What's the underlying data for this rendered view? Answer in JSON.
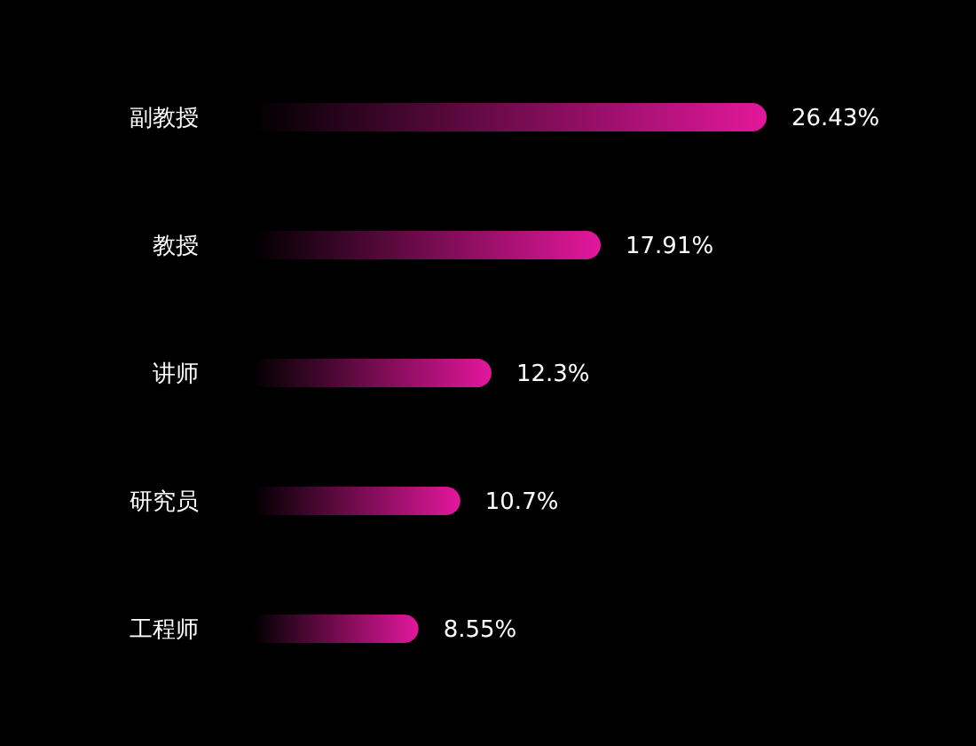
{
  "chart_data": {
    "type": "bar",
    "orientation": "horizontal",
    "categories": [
      "副教授",
      "教授",
      "讲师",
      "研究员",
      "工程师"
    ],
    "values": [
      26.43,
      17.91,
      12.3,
      10.7,
      8.55
    ],
    "value_labels": [
      "26.43%",
      "17.91%",
      "12.3%",
      "10.7%",
      "8.55%"
    ],
    "color": "#e3179c",
    "grid": false,
    "legend": false
  }
}
